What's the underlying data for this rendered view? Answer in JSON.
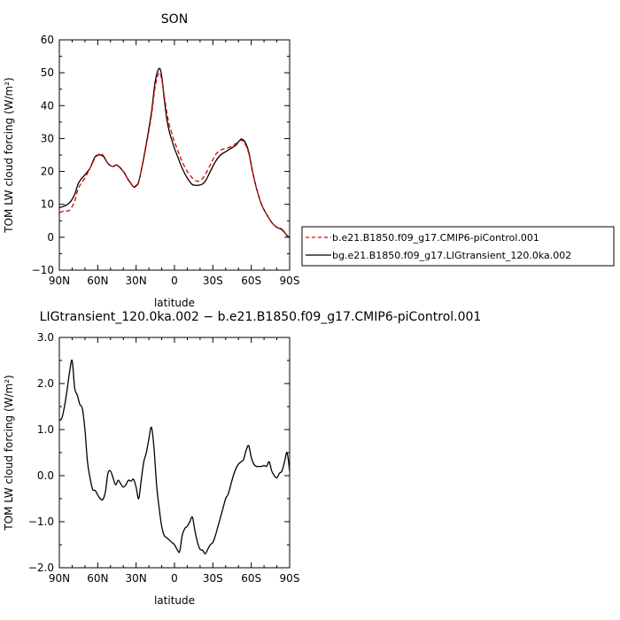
{
  "chart_data": [
    {
      "type": "line",
      "title": "SON",
      "xlabel": "latitude",
      "ylabel": "TOM LW cloud forcing (W/m²)",
      "xlim": [
        90,
        -90
      ],
      "ylim": [
        -10,
        60
      ],
      "xticks": [
        90,
        60,
        30,
        0,
        -30,
        -60,
        -90
      ],
      "xtick_labels": [
        "90N",
        "60N",
        "30N",
        "0",
        "30S",
        "60S",
        "90S"
      ],
      "yticks": [
        -10,
        0,
        10,
        20,
        30,
        40,
        50,
        60
      ],
      "ytick_labels": [
        "−10",
        "0",
        "10",
        "20",
        "30",
        "40",
        "50",
        "60"
      ],
      "legend_position": "right",
      "series": [
        {
          "name": "b.e21.B1850.f09_g17.CMIP6-piControl.001",
          "color": "#e00000",
          "dash": "dashed",
          "x": [
            90,
            86,
            82,
            78,
            75,
            70,
            66,
            62,
            58,
            55,
            52,
            48,
            45,
            40,
            36,
            32,
            30,
            28,
            25,
            22,
            18,
            15,
            12,
            10,
            8,
            6,
            4,
            2,
            0,
            -3,
            -6,
            -10,
            -14,
            -18,
            -21,
            -24,
            -28,
            -32,
            -36,
            -40,
            -44,
            -48,
            -52,
            -55,
            -58,
            -61,
            -64,
            -68,
            -72,
            -76,
            -80,
            -84,
            -88,
            -90
          ],
          "y": [
            7.5,
            8,
            8.2,
            11,
            15,
            18,
            21,
            24,
            25.5,
            24.5,
            22.5,
            21.5,
            22,
            20,
            17.5,
            15.5,
            15.8,
            17,
            22,
            28,
            37,
            46,
            50,
            48,
            43,
            38,
            34,
            31.5,
            29,
            26,
            23,
            20,
            18,
            17,
            17.5,
            19,
            22,
            25,
            26.5,
            27,
            27.5,
            28.5,
            29.5,
            28.5,
            25.5,
            20,
            15,
            10,
            7,
            4.5,
            3,
            2.5,
            0.5,
            0
          ]
        },
        {
          "name": "bg.e21.B1850.f09_g17.LIGtransient_120.0ka.002",
          "color": "#000000",
          "dash": "solid",
          "x": [
            90,
            86,
            82,
            78,
            75,
            70,
            66,
            62,
            58,
            55,
            52,
            48,
            45,
            40,
            36,
            32,
            30,
            28,
            25,
            22,
            18,
            15,
            12,
            10,
            8,
            6,
            4,
            2,
            0,
            -3,
            -6,
            -10,
            -14,
            -18,
            -21,
            -24,
            -28,
            -32,
            -36,
            -40,
            -44,
            -48,
            -52,
            -55,
            -58,
            -61,
            -64,
            -68,
            -72,
            -76,
            -80,
            -84,
            -88,
            -90
          ],
          "y": [
            9,
            9.5,
            10.5,
            13,
            16.5,
            19,
            21,
            24.5,
            25,
            24.3,
            22.4,
            21.5,
            21.9,
            20,
            17.4,
            15.3,
            15.6,
            16.8,
            22.2,
            28.5,
            38,
            47.5,
            51.3,
            49,
            42,
            36,
            32,
            29.5,
            27,
            24,
            21,
            18,
            16,
            15.8,
            16,
            17,
            20,
            23,
            25,
            26,
            27,
            28,
            29.8,
            29,
            26,
            20,
            15,
            10,
            7,
            4.5,
            3,
            2.3,
            0.5,
            0
          ]
        }
      ]
    },
    {
      "type": "line",
      "title": "LIGtransient_120.0ka.002 − b.e21.B1850.f09_g17.CMIP6-piControl.001",
      "xlabel": "latitude",
      "ylabel": "TOM LW cloud forcing (W/m²)",
      "xlim": [
        90,
        -90
      ],
      "ylim": [
        -2,
        3
      ],
      "xticks": [
        90,
        60,
        30,
        0,
        -30,
        -60,
        -90
      ],
      "xtick_labels": [
        "90N",
        "60N",
        "30N",
        "0",
        "30S",
        "60S",
        "90S"
      ],
      "yticks": [
        -2,
        -1,
        0,
        1,
        2,
        3
      ],
      "ytick_labels": [
        "−2.0",
        "−1.0",
        "0.0",
        "1.0",
        "2.0",
        "3.0"
      ],
      "series": [
        {
          "color": "#000000",
          "x": [
            90,
            88,
            86,
            84,
            82,
            80,
            78,
            76,
            74,
            72,
            70,
            68,
            66,
            64,
            62,
            60,
            58,
            56,
            54,
            52,
            50,
            48,
            46,
            44,
            42,
            40,
            38,
            36,
            34,
            32,
            30,
            28,
            26,
            24,
            22,
            20,
            18,
            16,
            14,
            12,
            10,
            8,
            6,
            4,
            2,
            0,
            -2,
            -4,
            -6,
            -8,
            -10,
            -12,
            -14,
            -16,
            -18,
            -20,
            -22,
            -24,
            -26,
            -28,
            -30,
            -32,
            -34,
            -36,
            -38,
            -40,
            -42,
            -44,
            -46,
            -48,
            -50,
            -52,
            -54,
            -56,
            -58,
            -60,
            -62,
            -64,
            -66,
            -68,
            -70,
            -72,
            -74,
            -76,
            -78,
            -80,
            -82,
            -84,
            -86,
            -88,
            -90
          ],
          "y": [
            1.2,
            1.25,
            1.5,
            1.85,
            2.25,
            2.5,
            1.9,
            1.75,
            1.55,
            1.45,
            1.0,
            0.3,
            -0.05,
            -0.3,
            -0.32,
            -0.42,
            -0.5,
            -0.52,
            -0.35,
            0.05,
            0.1,
            -0.05,
            -0.2,
            -0.1,
            -0.18,
            -0.25,
            -0.2,
            -0.1,
            -0.12,
            -0.08,
            -0.25,
            -0.5,
            -0.1,
            0.3,
            0.5,
            0.8,
            1.05,
            0.6,
            -0.2,
            -0.7,
            -1.1,
            -1.3,
            -1.35,
            -1.4,
            -1.45,
            -1.5,
            -1.6,
            -1.65,
            -1.3,
            -1.15,
            -1.1,
            -1.0,
            -0.9,
            -1.2,
            -1.45,
            -1.6,
            -1.62,
            -1.7,
            -1.6,
            -1.5,
            -1.45,
            -1.3,
            -1.1,
            -0.9,
            -0.7,
            -0.5,
            -0.4,
            -0.2,
            0.0,
            0.15,
            0.25,
            0.3,
            0.35,
            0.55,
            0.65,
            0.4,
            0.25,
            0.2,
            0.2,
            0.2,
            0.22,
            0.2,
            0.3,
            0.1,
            0.0,
            -0.05,
            0.05,
            0.1,
            0.3,
            0.5,
            0.1
          ]
        }
      ]
    }
  ]
}
